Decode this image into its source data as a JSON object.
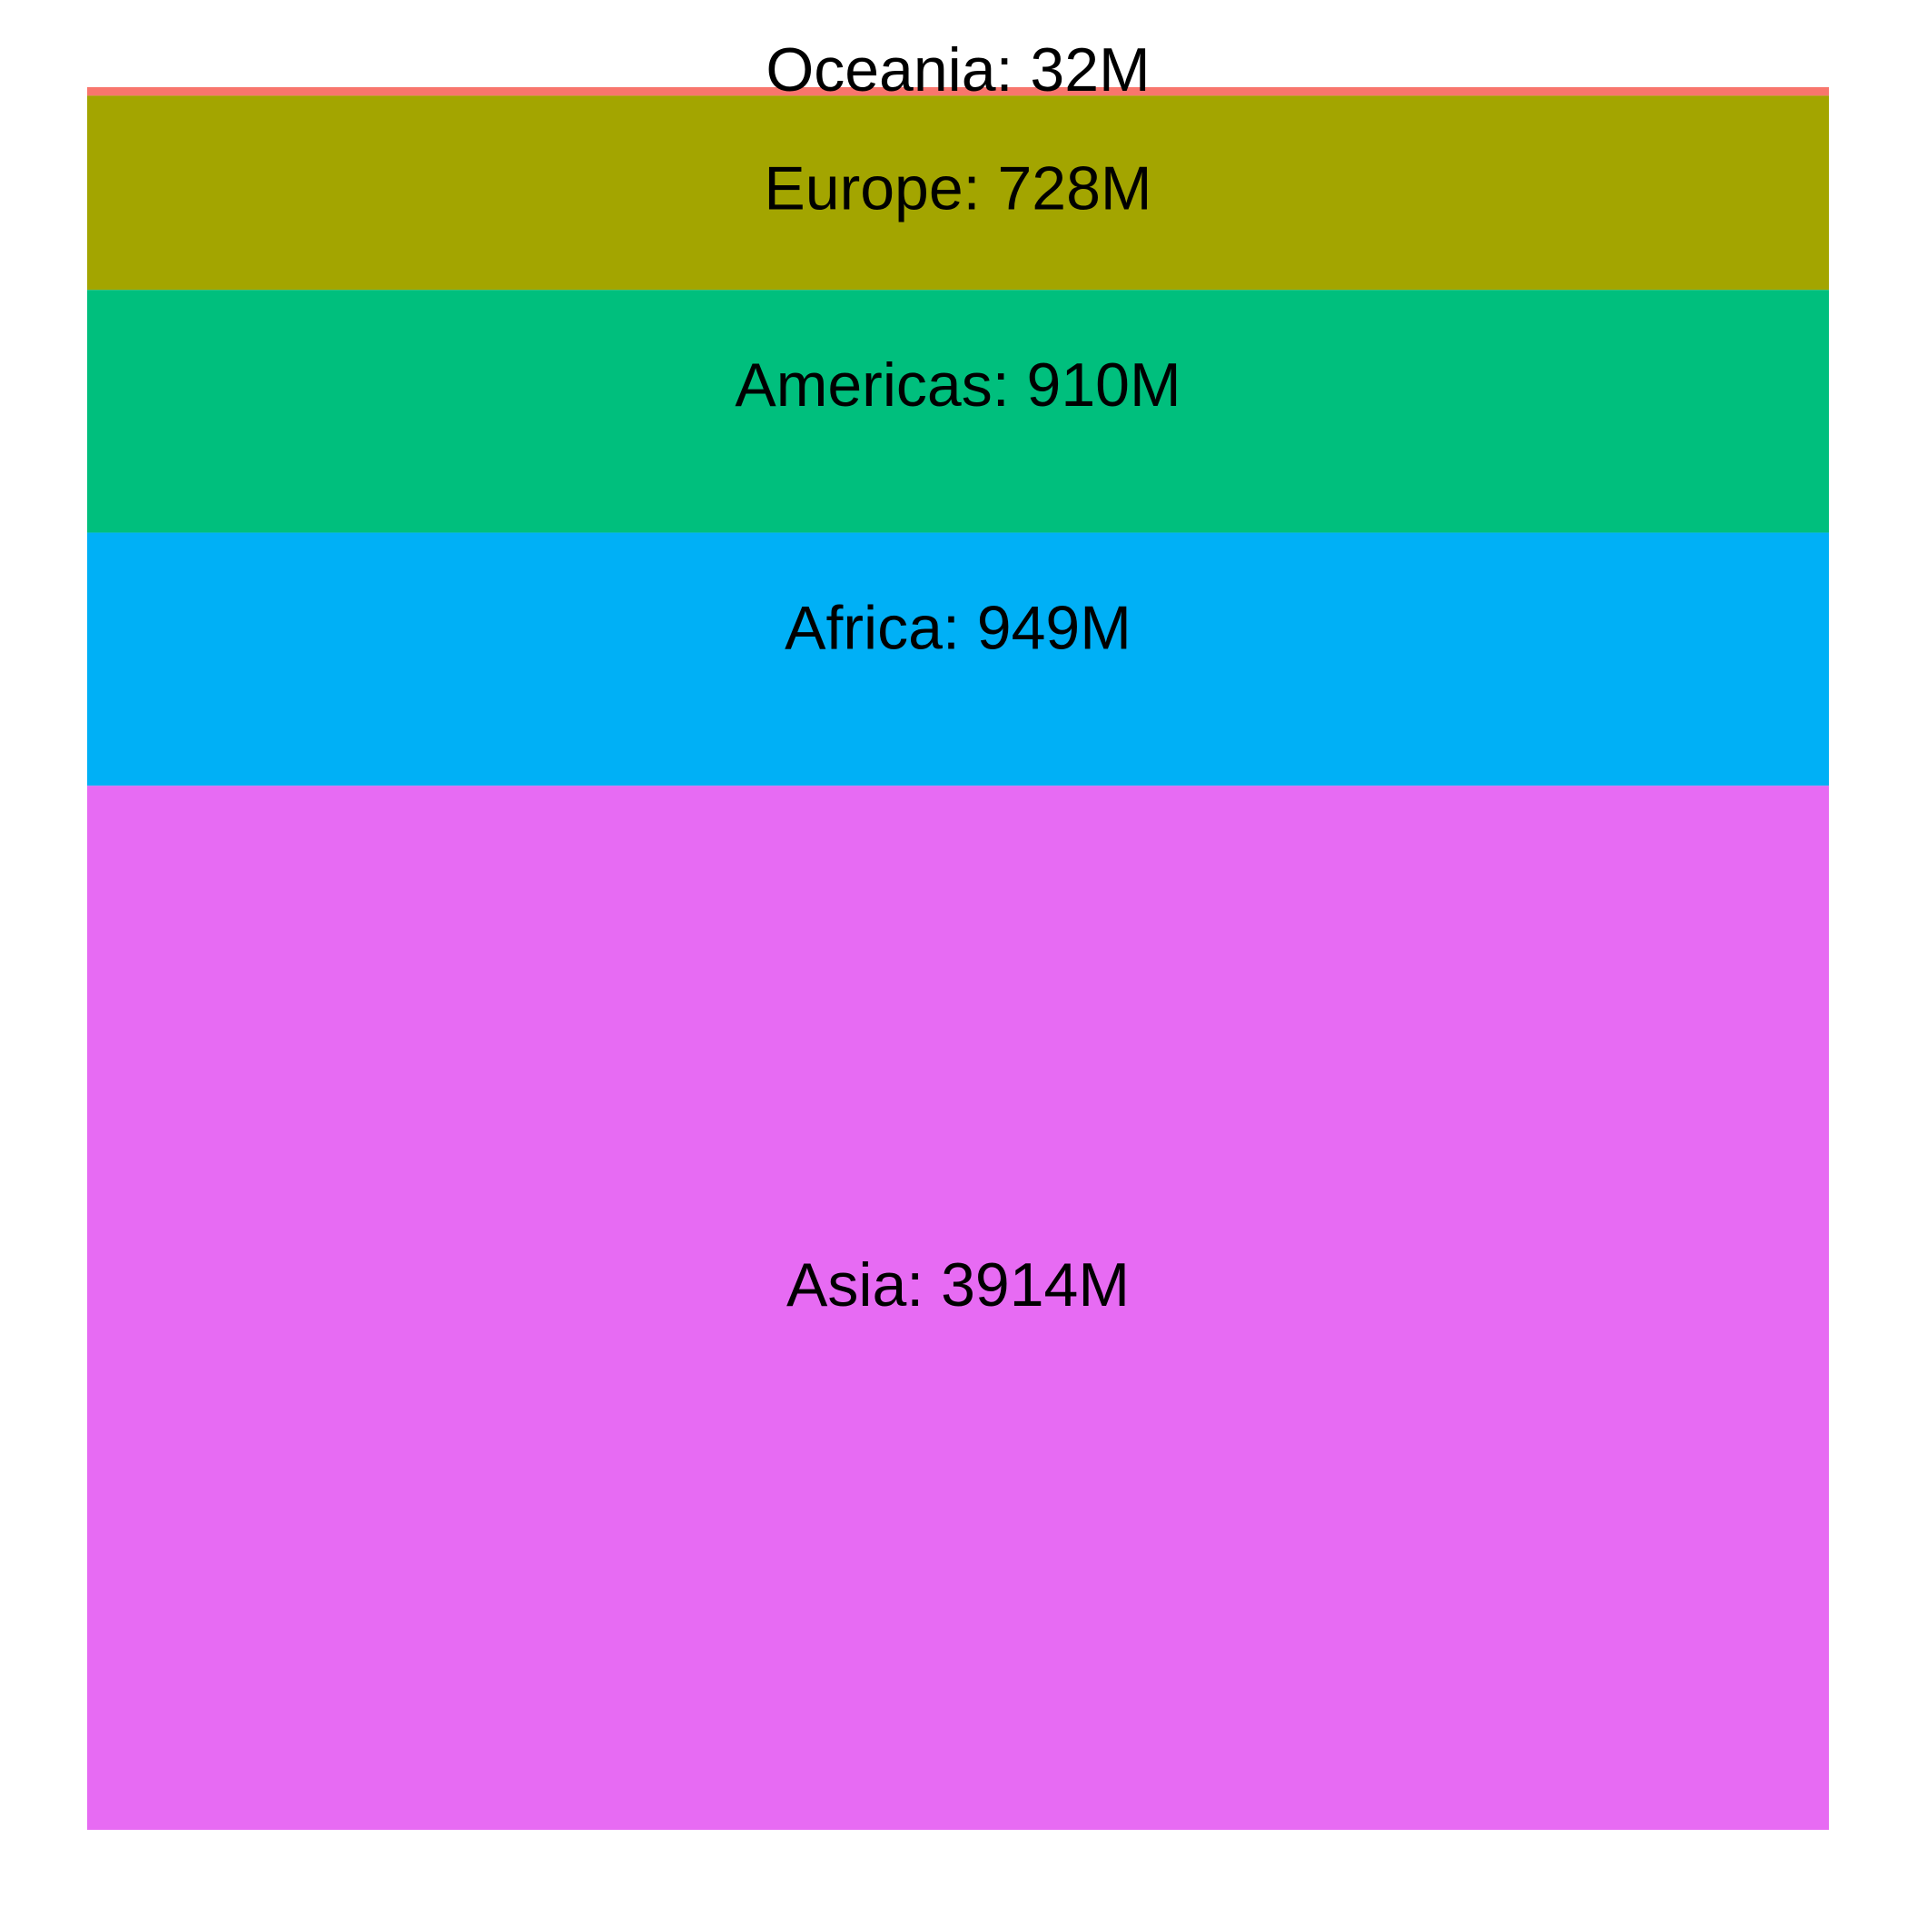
{
  "chart_data": {
    "type": "bar",
    "orientation": "stacked-vertical",
    "categories": [
      "Oceania",
      "Europe",
      "Americas",
      "Africa",
      "Asia"
    ],
    "values": [
      32,
      728,
      910,
      949,
      3914
    ],
    "labels": [
      "Oceania: 32M",
      "Europe: 728M",
      "Americas: 910M",
      "Africa: 949M",
      "Asia: 3914M"
    ],
    "colors": [
      "#F8766D",
      "#A3A500",
      "#00BF7D",
      "#00B0F6",
      "#E76BF3"
    ],
    "title": "",
    "xlabel": "",
    "ylabel": "",
    "grid": false,
    "legend": "none"
  }
}
